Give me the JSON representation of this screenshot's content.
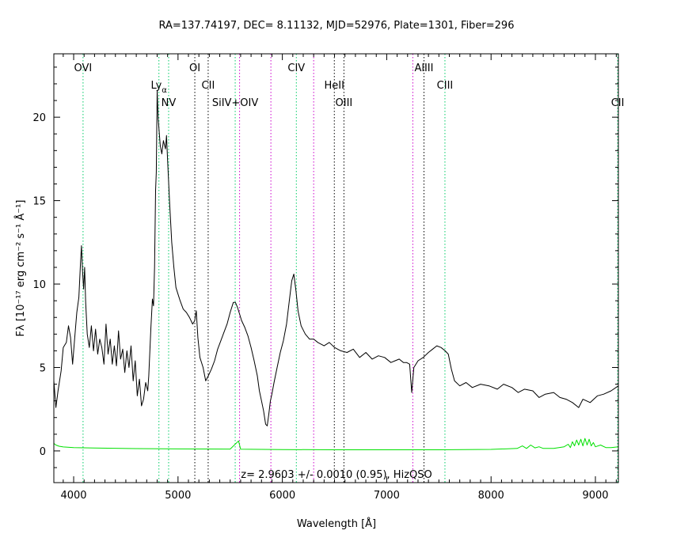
{
  "chart_data": {
    "type": "line",
    "title": "RA=137.74197, DEC= 8.11132, MJD=52976, Plate=1301, Fiber=296",
    "xlabel": "Wavelength [Å]",
    "ylabel": "Fλ [10⁻¹⁷ erg cm⁻² s⁻¹ Å⁻¹]",
    "xlim": [
      3810,
      9220
    ],
    "ylim": [
      -1.9,
      23.8
    ],
    "x_ticks": [
      4000,
      5000,
      6000,
      7000,
      8000,
      9000
    ],
    "y_ticks": [
      0,
      5,
      10,
      15,
      20
    ],
    "annotation": "z= 2.9603 +/- 0.0010 (0.95), HizQSO",
    "series": [
      {
        "color": "#000000",
        "points": [
          [
            3810,
            4.2
          ],
          [
            3830,
            2.6
          ],
          [
            3850,
            3.6
          ],
          [
            3880,
            4.8
          ],
          [
            3900,
            6.2
          ],
          [
            3930,
            6.5
          ],
          [
            3950,
            7.5
          ],
          [
            3970,
            6.8
          ],
          [
            3990,
            5.2
          ],
          [
            4010,
            6.8
          ],
          [
            4030,
            8.3
          ],
          [
            4050,
            9.2
          ],
          [
            4065,
            11.2
          ],
          [
            4075,
            12.3
          ],
          [
            4085,
            10.8
          ],
          [
            4095,
            9.7
          ],
          [
            4105,
            11.0
          ],
          [
            4115,
            8.9
          ],
          [
            4130,
            7.0
          ],
          [
            4150,
            6.2
          ],
          [
            4170,
            7.5
          ],
          [
            4190,
            6.0
          ],
          [
            4210,
            7.3
          ],
          [
            4230,
            5.8
          ],
          [
            4250,
            6.7
          ],
          [
            4270,
            6.2
          ],
          [
            4290,
            5.2
          ],
          [
            4310,
            7.6
          ],
          [
            4330,
            5.8
          ],
          [
            4350,
            6.7
          ],
          [
            4370,
            5.2
          ],
          [
            4390,
            6.3
          ],
          [
            4410,
            5.1
          ],
          [
            4430,
            7.2
          ],
          [
            4450,
            5.5
          ],
          [
            4470,
            6.1
          ],
          [
            4490,
            4.7
          ],
          [
            4510,
            6.0
          ],
          [
            4530,
            5.0
          ],
          [
            4550,
            6.3
          ],
          [
            4570,
            4.2
          ],
          [
            4590,
            5.4
          ],
          [
            4610,
            3.3
          ],
          [
            4630,
            4.3
          ],
          [
            4650,
            2.7
          ],
          [
            4670,
            3.1
          ],
          [
            4690,
            4.1
          ],
          [
            4710,
            3.6
          ],
          [
            4720,
            4.5
          ],
          [
            4740,
            7.4
          ],
          [
            4755,
            9.1
          ],
          [
            4765,
            8.7
          ],
          [
            4775,
            11.0
          ],
          [
            4785,
            15.6
          ],
          [
            4792,
            16.7
          ],
          [
            4800,
            21.6
          ],
          [
            4810,
            19.9
          ],
          [
            4830,
            18.3
          ],
          [
            4845,
            17.8
          ],
          [
            4860,
            18.6
          ],
          [
            4880,
            18.1
          ],
          [
            4890,
            18.9
          ],
          [
            4900,
            17.4
          ],
          [
            4920,
            14.8
          ],
          [
            4940,
            12.5
          ],
          [
            4960,
            11.0
          ],
          [
            4980,
            9.8
          ],
          [
            5000,
            9.4
          ],
          [
            5020,
            9.0
          ],
          [
            5050,
            8.5
          ],
          [
            5080,
            8.3
          ],
          [
            5110,
            8.0
          ],
          [
            5140,
            7.6
          ],
          [
            5160,
            7.8
          ],
          [
            5175,
            8.4
          ],
          [
            5190,
            6.8
          ],
          [
            5210,
            5.6
          ],
          [
            5240,
            5.0
          ],
          [
            5265,
            4.2
          ],
          [
            5290,
            4.5
          ],
          [
            5320,
            4.9
          ],
          [
            5350,
            5.4
          ],
          [
            5380,
            6.1
          ],
          [
            5410,
            6.6
          ],
          [
            5440,
            7.1
          ],
          [
            5470,
            7.6
          ],
          [
            5500,
            8.3
          ],
          [
            5530,
            8.9
          ],
          [
            5550,
            8.9
          ],
          [
            5570,
            8.6
          ],
          [
            5590,
            8.2
          ],
          [
            5610,
            7.8
          ],
          [
            5640,
            7.4
          ],
          [
            5670,
            6.9
          ],
          [
            5700,
            6.2
          ],
          [
            5730,
            5.4
          ],
          [
            5760,
            4.5
          ],
          [
            5780,
            3.6
          ],
          [
            5800,
            3.0
          ],
          [
            5820,
            2.4
          ],
          [
            5840,
            1.6
          ],
          [
            5855,
            1.5
          ],
          [
            5870,
            2.2
          ],
          [
            5885,
            3.0
          ],
          [
            5900,
            3.4
          ],
          [
            5920,
            4.1
          ],
          [
            5950,
            5.0
          ],
          [
            5980,
            5.9
          ],
          [
            6010,
            6.6
          ],
          [
            6040,
            7.6
          ],
          [
            6070,
            9.2
          ],
          [
            6090,
            10.2
          ],
          [
            6110,
            10.6
          ],
          [
            6130,
            9.6
          ],
          [
            6150,
            8.4
          ],
          [
            6180,
            7.5
          ],
          [
            6220,
            7.0
          ],
          [
            6260,
            6.7
          ],
          [
            6300,
            6.7
          ],
          [
            6340,
            6.5
          ],
          [
            6400,
            6.3
          ],
          [
            6450,
            6.5
          ],
          [
            6500,
            6.2
          ],
          [
            6560,
            6.0
          ],
          [
            6620,
            5.9
          ],
          [
            6680,
            6.1
          ],
          [
            6740,
            5.6
          ],
          [
            6800,
            5.9
          ],
          [
            6860,
            5.5
          ],
          [
            6920,
            5.7
          ],
          [
            6980,
            5.6
          ],
          [
            7040,
            5.3
          ],
          [
            7080,
            5.4
          ],
          [
            7120,
            5.5
          ],
          [
            7160,
            5.3
          ],
          [
            7190,
            5.3
          ],
          [
            7220,
            5.2
          ],
          [
            7240,
            3.5
          ],
          [
            7260,
            5.0
          ],
          [
            7300,
            5.4
          ],
          [
            7350,
            5.6
          ],
          [
            7400,
            5.9
          ],
          [
            7440,
            6.1
          ],
          [
            7480,
            6.3
          ],
          [
            7520,
            6.2
          ],
          [
            7560,
            6.0
          ],
          [
            7590,
            5.8
          ],
          [
            7620,
            4.9
          ],
          [
            7650,
            4.2
          ],
          [
            7700,
            3.9
          ],
          [
            7760,
            4.1
          ],
          [
            7820,
            3.8
          ],
          [
            7900,
            4.0
          ],
          [
            7980,
            3.9
          ],
          [
            8060,
            3.7
          ],
          [
            8120,
            4.0
          ],
          [
            8200,
            3.8
          ],
          [
            8260,
            3.5
          ],
          [
            8320,
            3.7
          ],
          [
            8400,
            3.6
          ],
          [
            8460,
            3.2
          ],
          [
            8520,
            3.4
          ],
          [
            8600,
            3.5
          ],
          [
            8660,
            3.2
          ],
          [
            8720,
            3.1
          ],
          [
            8780,
            2.9
          ],
          [
            8840,
            2.6
          ],
          [
            8880,
            3.1
          ],
          [
            8950,
            2.9
          ],
          [
            9020,
            3.3
          ],
          [
            9080,
            3.4
          ],
          [
            9150,
            3.6
          ],
          [
            9220,
            3.9
          ]
        ]
      },
      {
        "color": "#00e000",
        "points": [
          [
            3810,
            0.45
          ],
          [
            3830,
            0.35
          ],
          [
            3860,
            0.28
          ],
          [
            3900,
            0.24
          ],
          [
            4000,
            0.2
          ],
          [
            4200,
            0.17
          ],
          [
            4600,
            0.14
          ],
          [
            5000,
            0.12
          ],
          [
            5500,
            0.11
          ],
          [
            5580,
            0.6
          ],
          [
            5600,
            0.1
          ],
          [
            6000,
            0.08
          ],
          [
            6500,
            0.07
          ],
          [
            7000,
            0.07
          ],
          [
            7500,
            0.07
          ],
          [
            8000,
            0.09
          ],
          [
            8250,
            0.15
          ],
          [
            8300,
            0.3
          ],
          [
            8340,
            0.15
          ],
          [
            8380,
            0.35
          ],
          [
            8420,
            0.18
          ],
          [
            8460,
            0.25
          ],
          [
            8500,
            0.15
          ],
          [
            8600,
            0.15
          ],
          [
            8700,
            0.25
          ],
          [
            8740,
            0.4
          ],
          [
            8760,
            0.2
          ],
          [
            8780,
            0.55
          ],
          [
            8800,
            0.3
          ],
          [
            8820,
            0.65
          ],
          [
            8840,
            0.35
          ],
          [
            8860,
            0.7
          ],
          [
            8880,
            0.3
          ],
          [
            8900,
            0.75
          ],
          [
            8920,
            0.35
          ],
          [
            8940,
            0.7
          ],
          [
            8960,
            0.3
          ],
          [
            8980,
            0.5
          ],
          [
            9000,
            0.25
          ],
          [
            9050,
            0.35
          ],
          [
            9100,
            0.2
          ],
          [
            9150,
            0.2
          ],
          [
            9220,
            0.25
          ]
        ]
      }
    ],
    "lines": [
      {
        "label": "OVI",
        "x": 4090,
        "color": "#00cc66",
        "row": 0
      },
      {
        "label": "Ly",
        "sub": "α",
        "x": 4817,
        "color": "#00cc66",
        "row": 1
      },
      {
        "label": "NV",
        "x": 4910,
        "color": "#00cc66",
        "row": 2
      },
      {
        "label": "OI",
        "x": 5161,
        "color": "#000000",
        "row": 0
      },
      {
        "label": "CII",
        "x": 5289,
        "color": "#000000",
        "row": 1
      },
      {
        "label": "SiIV+OIV",
        "x": 5548,
        "color": "#00cc66",
        "row": 2
      },
      {
        "label": "",
        "x": 5590,
        "color": "#cc00cc",
        "row": 2
      },
      {
        "label": "",
        "x": 5890,
        "color": "#cc00cc",
        "row": 2
      },
      {
        "label": "CIV",
        "x": 6134,
        "color": "#00cc66",
        "row": 0
      },
      {
        "label": "",
        "x": 6300,
        "color": "#cc00cc",
        "row": 0
      },
      {
        "label": "HeII",
        "x": 6498,
        "color": "#000000",
        "row": 1
      },
      {
        "label": "OIII",
        "x": 6590,
        "color": "#000000",
        "row": 2
      },
      {
        "label": "",
        "x": 7250,
        "color": "#cc00cc",
        "row": 0
      },
      {
        "label": "AlIII",
        "x": 7357,
        "color": "#000000",
        "row": 0
      },
      {
        "label": "CIII",
        "x": 7558,
        "color": "#00cc66",
        "row": 1
      },
      {
        "label": "CII",
        "x": 9213,
        "color": "#00cc66",
        "row": 2
      }
    ]
  }
}
